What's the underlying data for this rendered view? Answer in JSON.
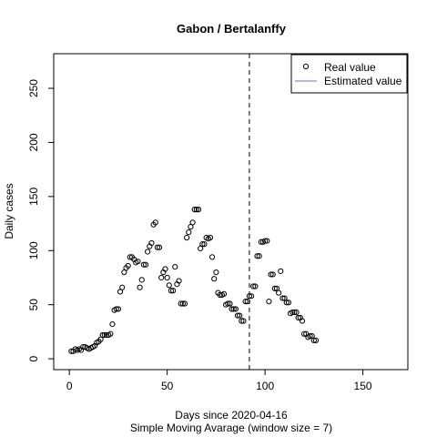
{
  "chart_data": {
    "type": "scatter",
    "title": "Gabon / Bertalanffy",
    "xlabel": "Days since 2020-04-16",
    "subtitle": "Simple Moving Avarage (window size = 7)",
    "ylabel": "Daily cases",
    "xlim": [
      -8,
      173
    ],
    "ylim": [
      -10,
      282
    ],
    "xticks": [
      0,
      50,
      100,
      150
    ],
    "yticks": [
      0,
      50,
      100,
      150,
      200,
      250
    ],
    "vline_x": 92,
    "legend": {
      "position": "top-right",
      "items": [
        {
          "label": "Real value",
          "kind": "point",
          "color": "#000000"
        },
        {
          "label": "Estimated value",
          "kind": "line",
          "color": "#9b59b6"
        }
      ]
    },
    "series": [
      {
        "name": "Real value",
        "points": [
          [
            1,
            7
          ],
          [
            2,
            7
          ],
          [
            3,
            9
          ],
          [
            4,
            8
          ],
          [
            5,
            9
          ],
          [
            6,
            8
          ],
          [
            7,
            11
          ],
          [
            8,
            11
          ],
          [
            9,
            10
          ],
          [
            10,
            9
          ],
          [
            11,
            10
          ],
          [
            12,
            11
          ],
          [
            13,
            12
          ],
          [
            14,
            15
          ],
          [
            15,
            16
          ],
          [
            16,
            18
          ],
          [
            17,
            22
          ],
          [
            18,
            22
          ],
          [
            19,
            22
          ],
          [
            20,
            22
          ],
          [
            21,
            23
          ],
          [
            22,
            32
          ],
          [
            23,
            45
          ],
          [
            24,
            46
          ],
          [
            25,
            46
          ],
          [
            26,
            62
          ],
          [
            27,
            66
          ],
          [
            28,
            80
          ],
          [
            29,
            84
          ],
          [
            30,
            86
          ],
          [
            31,
            94
          ],
          [
            32,
            94
          ],
          [
            33,
            92
          ],
          [
            34,
            89
          ],
          [
            35,
            90
          ],
          [
            36,
            66
          ],
          [
            37,
            73
          ],
          [
            38,
            87
          ],
          [
            39,
            87
          ],
          [
            40,
            99
          ],
          [
            41,
            104
          ],
          [
            42,
            107
          ],
          [
            43,
            124
          ],
          [
            44,
            126
          ],
          [
            45,
            103
          ],
          [
            46,
            103
          ],
          [
            47,
            75
          ],
          [
            48,
            80
          ],
          [
            49,
            83
          ],
          [
            50,
            75
          ],
          [
            51,
            68
          ],
          [
            52,
            63
          ],
          [
            53,
            63
          ],
          [
            54,
            85
          ],
          [
            55,
            69
          ],
          [
            56,
            72
          ],
          [
            57,
            51
          ],
          [
            58,
            51
          ],
          [
            59,
            51
          ],
          [
            60,
            112
          ],
          [
            61,
            117
          ],
          [
            62,
            122
          ],
          [
            63,
            126
          ],
          [
            64,
            138
          ],
          [
            65,
            138
          ],
          [
            66,
            138
          ],
          [
            67,
            102
          ],
          [
            68,
            106
          ],
          [
            69,
            106
          ],
          [
            70,
            112
          ],
          [
            71,
            111
          ],
          [
            72,
            112
          ],
          [
            73,
            94
          ],
          [
            74,
            74
          ],
          [
            75,
            80
          ],
          [
            76,
            61
          ],
          [
            77,
            59
          ],
          [
            78,
            59
          ],
          [
            79,
            60
          ],
          [
            80,
            50
          ],
          [
            81,
            51
          ],
          [
            82,
            51
          ],
          [
            83,
            46
          ],
          [
            84,
            46
          ],
          [
            85,
            46
          ],
          [
            86,
            40
          ],
          [
            87,
            40
          ],
          [
            88,
            35
          ],
          [
            89,
            35
          ],
          [
            90,
            53
          ],
          [
            91,
            53
          ],
          [
            92,
            58
          ],
          [
            93,
            58
          ],
          [
            94,
            67
          ],
          [
            95,
            67
          ],
          [
            96,
            95
          ],
          [
            97,
            95
          ],
          [
            98,
            108
          ],
          [
            99,
            108
          ],
          [
            100,
            109
          ],
          [
            101,
            109
          ],
          [
            102,
            53
          ],
          [
            103,
            78
          ],
          [
            104,
            78
          ],
          [
            105,
            65
          ],
          [
            106,
            65
          ],
          [
            107,
            61
          ],
          [
            108,
            81
          ],
          [
            109,
            56
          ],
          [
            110,
            56
          ],
          [
            111,
            52
          ],
          [
            112,
            52
          ],
          [
            113,
            42
          ],
          [
            114,
            43
          ],
          [
            115,
            43
          ],
          [
            116,
            43
          ],
          [
            117,
            38
          ],
          [
            118,
            38
          ],
          [
            119,
            35
          ],
          [
            120,
            23
          ],
          [
            121,
            23
          ],
          [
            122,
            20
          ],
          [
            123,
            21
          ],
          [
            124,
            21
          ],
          [
            125,
            17
          ],
          [
            126,
            17
          ]
        ]
      }
    ]
  }
}
